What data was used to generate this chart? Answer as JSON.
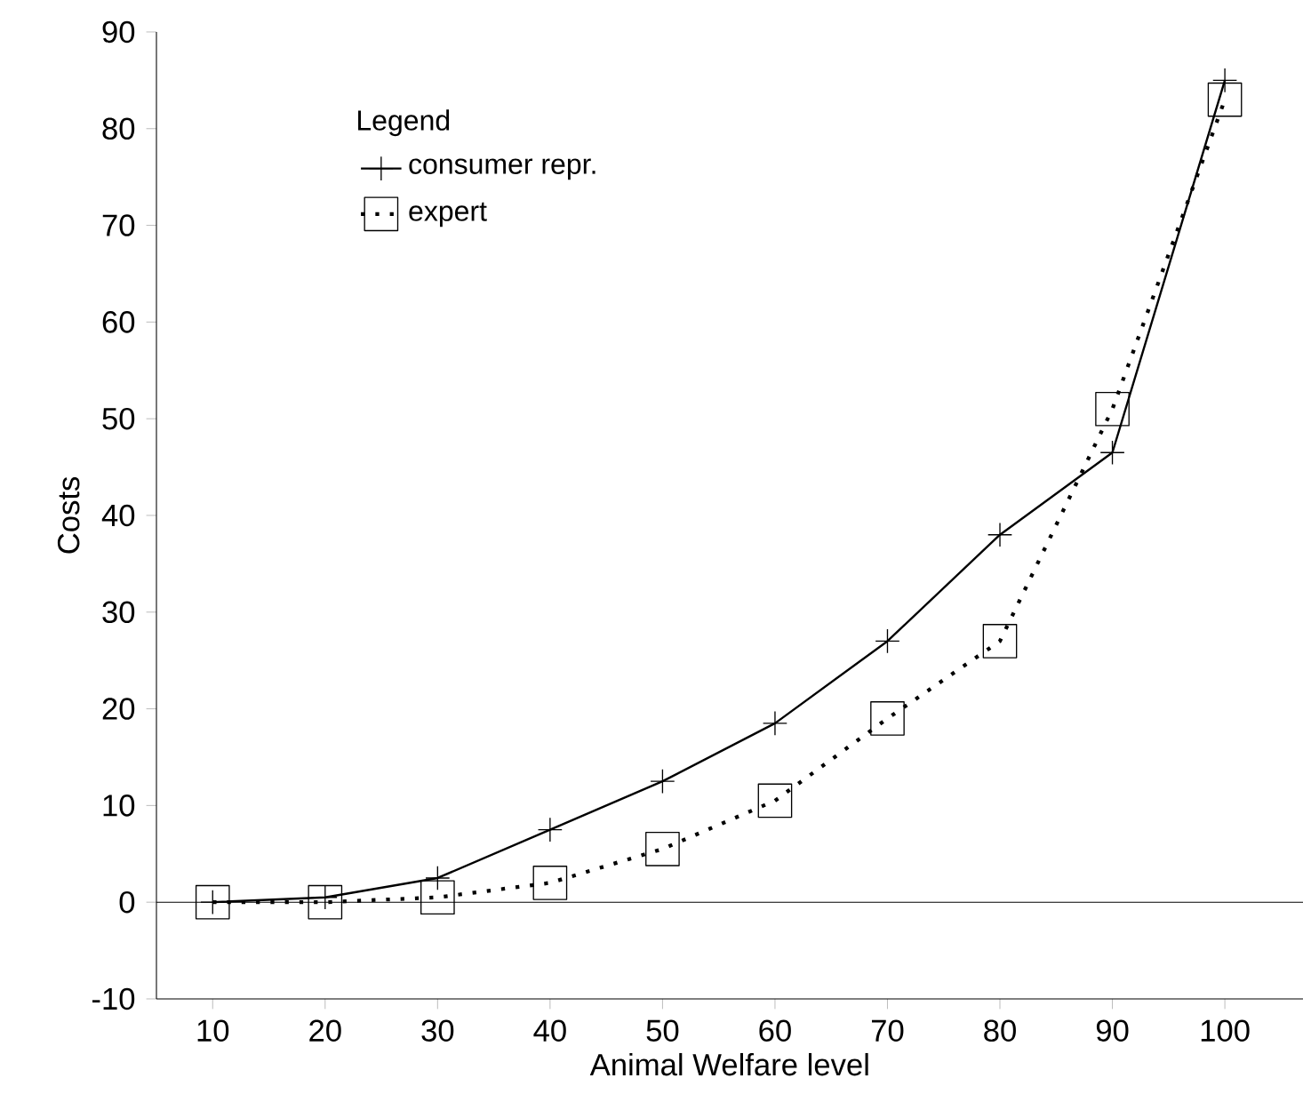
{
  "chart_data": {
    "type": "line",
    "xlabel": "Animal Welfare level",
    "ylabel": "Costs",
    "legend_title": "Legend",
    "x": [
      10,
      20,
      30,
      40,
      50,
      60,
      70,
      80,
      90,
      100
    ],
    "series": [
      {
        "name": "consumer repr.",
        "color": "#000000",
        "marker": "cross",
        "line_style": "solid",
        "values": [
          0,
          0.5,
          2.5,
          7.5,
          12.5,
          18.5,
          27,
          38,
          46.5,
          85
        ]
      },
      {
        "name": "expert",
        "color": "#000000",
        "marker": "square",
        "line_style": "dotted",
        "values": [
          0,
          0,
          0.5,
          2,
          5.5,
          10.5,
          19,
          27,
          51,
          83
        ]
      }
    ],
    "xlim": [
      5,
      107
    ],
    "ylim": [
      -10,
      90
    ],
    "xticks": [
      10,
      20,
      30,
      40,
      50,
      60,
      70,
      80,
      90,
      100
    ],
    "yticks": [
      -10,
      0,
      10,
      20,
      30,
      40,
      50,
      60,
      70,
      80,
      90
    ],
    "ref_lines": [
      {
        "axis": "y",
        "value": 0
      }
    ],
    "legend": "top left",
    "grid": false
  }
}
